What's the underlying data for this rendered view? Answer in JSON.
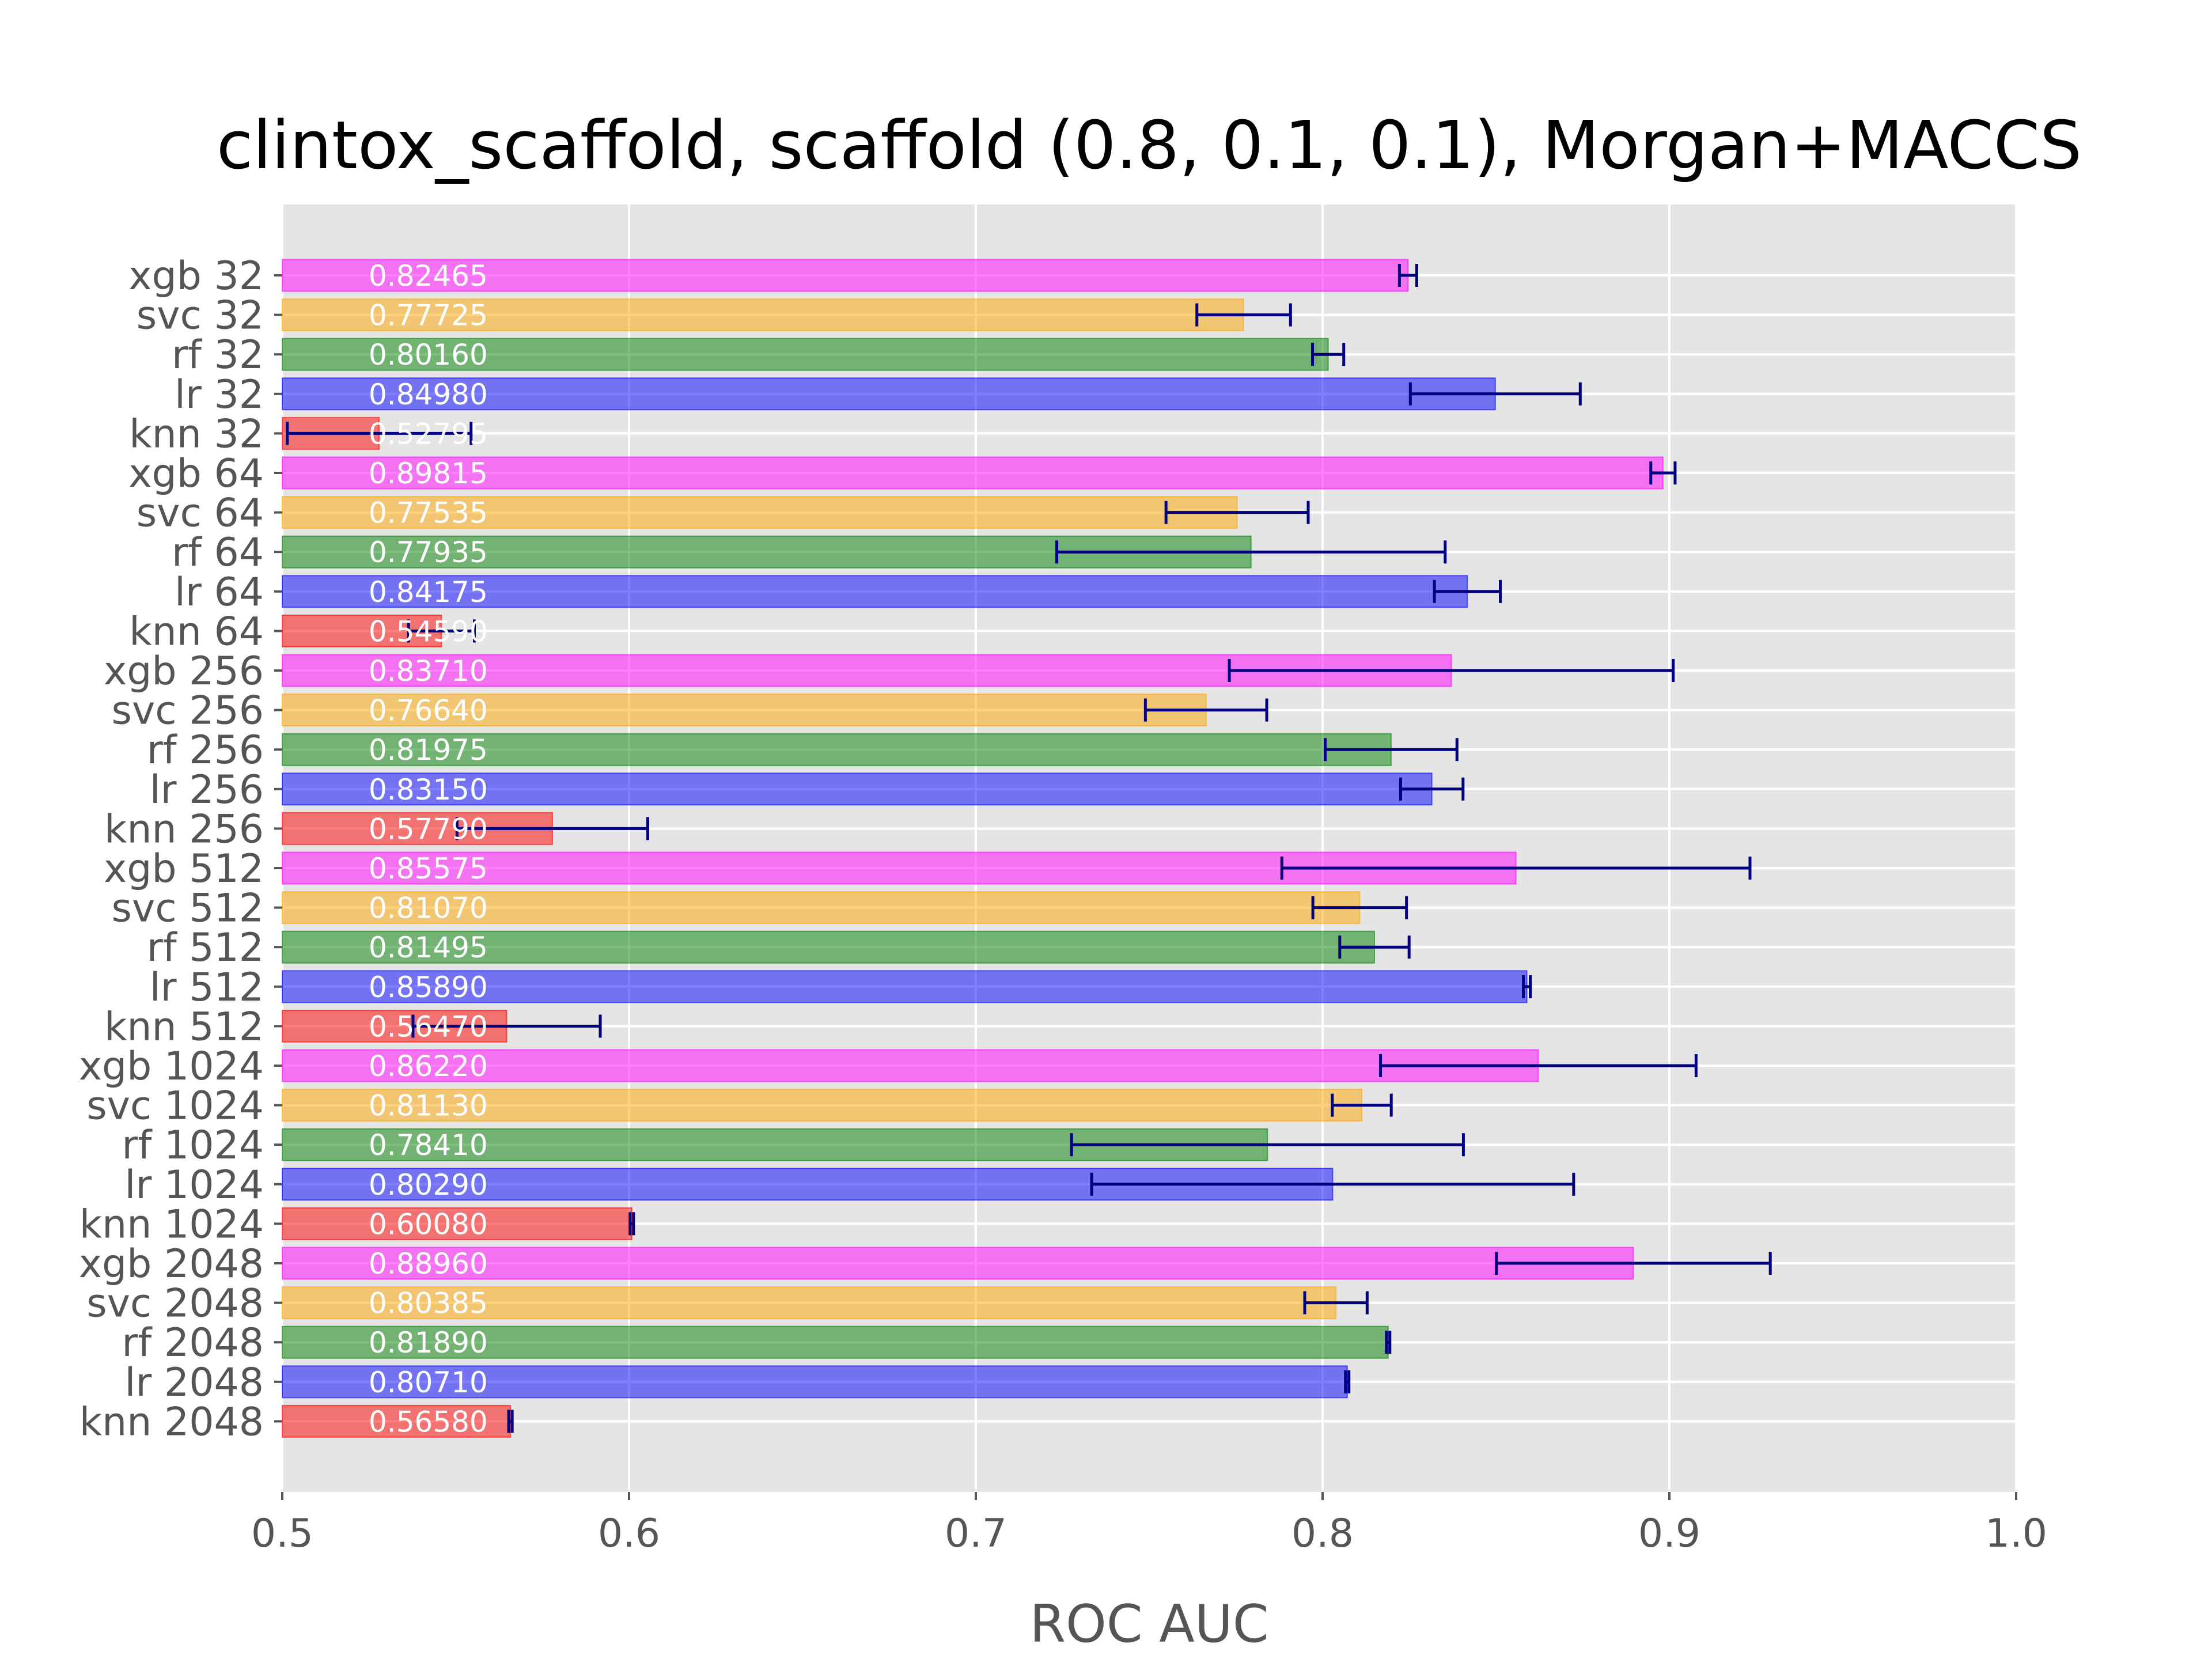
{
  "chart_data": {
    "type": "bar",
    "orientation": "horizontal",
    "title": "clintox_scaffold, scaffold (0.8, 0.1, 0.1), Morgan+MACCS",
    "xlabel": "ROC AUC",
    "ylabel": "",
    "xlim": [
      0.5,
      1.0
    ],
    "xticks": [
      "0.5",
      "0.6",
      "0.7",
      "0.8",
      "0.9",
      "1.0"
    ],
    "grid": true,
    "colors": {
      "xgb": "#ff00ff",
      "svc": "#ffa500",
      "rf": "#008000",
      "lr": "#0000ff",
      "knn": "#ff0000",
      "errorbar": "#000080",
      "plot_background": "#e5e5e5"
    },
    "bars": [
      {
        "label": "xgb 32",
        "model": "xgb",
        "value": 0.82465,
        "value_label": "0.82465",
        "err": 0.0025
      },
      {
        "label": "svc 32",
        "model": "svc",
        "value": 0.77725,
        "value_label": "0.77725",
        "err": 0.0135
      },
      {
        "label": "rf 32",
        "model": "rf",
        "value": 0.8016,
        "value_label": "0.80160",
        "err": 0.0045
      },
      {
        "label": "lr 32",
        "model": "lr",
        "value": 0.8498,
        "value_label": "0.84980",
        "err": 0.0245
      },
      {
        "label": "knn 32",
        "model": "knn",
        "value": 0.52795,
        "value_label": "0.52795",
        "err": 0.0265
      },
      {
        "label": "xgb 64",
        "model": "xgb",
        "value": 0.89815,
        "value_label": "0.89815",
        "err": 0.0035
      },
      {
        "label": "svc 64",
        "model": "svc",
        "value": 0.77535,
        "value_label": "0.77535",
        "err": 0.0205
      },
      {
        "label": "rf 64",
        "model": "rf",
        "value": 0.77935,
        "value_label": "0.77935",
        "err": 0.056
      },
      {
        "label": "lr 64",
        "model": "lr",
        "value": 0.84175,
        "value_label": "0.84175",
        "err": 0.0095
      },
      {
        "label": "knn 64",
        "model": "knn",
        "value": 0.5459,
        "value_label": "0.54590",
        "err": 0.0095
      },
      {
        "label": "xgb 256",
        "model": "xgb",
        "value": 0.8371,
        "value_label": "0.83710",
        "err": 0.064
      },
      {
        "label": "svc 256",
        "model": "svc",
        "value": 0.7664,
        "value_label": "0.76640",
        "err": 0.0175
      },
      {
        "label": "rf 256",
        "model": "rf",
        "value": 0.81975,
        "value_label": "0.81975",
        "err": 0.019
      },
      {
        "label": "lr 256",
        "model": "lr",
        "value": 0.8315,
        "value_label": "0.83150",
        "err": 0.009
      },
      {
        "label": "knn 256",
        "model": "knn",
        "value": 0.5779,
        "value_label": "0.57790",
        "err": 0.0275
      },
      {
        "label": "xgb 512",
        "model": "xgb",
        "value": 0.85575,
        "value_label": "0.85575",
        "err": 0.0675
      },
      {
        "label": "svc 512",
        "model": "svc",
        "value": 0.8107,
        "value_label": "0.81070",
        "err": 0.0135
      },
      {
        "label": "rf 512",
        "model": "rf",
        "value": 0.81495,
        "value_label": "0.81495",
        "err": 0.01
      },
      {
        "label": "lr 512",
        "model": "lr",
        "value": 0.8589,
        "value_label": "0.85890",
        "err": 0.001
      },
      {
        "label": "knn 512",
        "model": "knn",
        "value": 0.5647,
        "value_label": "0.56470",
        "err": 0.027
      },
      {
        "label": "xgb 1024",
        "model": "xgb",
        "value": 0.8622,
        "value_label": "0.86220",
        "err": 0.0455
      },
      {
        "label": "svc 1024",
        "model": "svc",
        "value": 0.8113,
        "value_label": "0.81130",
        "err": 0.0085
      },
      {
        "label": "rf 1024",
        "model": "rf",
        "value": 0.7841,
        "value_label": "0.78410",
        "err": 0.0565
      },
      {
        "label": "lr 1024",
        "model": "lr",
        "value": 0.8029,
        "value_label": "0.80290",
        "err": 0.0695
      },
      {
        "label": "knn 1024",
        "model": "knn",
        "value": 0.6008,
        "value_label": "0.60080",
        "err": 0.0005
      },
      {
        "label": "xgb 2048",
        "model": "xgb",
        "value": 0.8896,
        "value_label": "0.88960",
        "err": 0.0395
      },
      {
        "label": "svc 2048",
        "model": "svc",
        "value": 0.80385,
        "value_label": "0.80385",
        "err": 0.009
      },
      {
        "label": "rf 2048",
        "model": "rf",
        "value": 0.8189,
        "value_label": "0.81890",
        "err": 0.0005
      },
      {
        "label": "lr 2048",
        "model": "lr",
        "value": 0.8071,
        "value_label": "0.80710",
        "err": 0.0005
      },
      {
        "label": "knn 2048",
        "model": "knn",
        "value": 0.5658,
        "value_label": "0.56580",
        "err": 0.0005
      }
    ]
  }
}
